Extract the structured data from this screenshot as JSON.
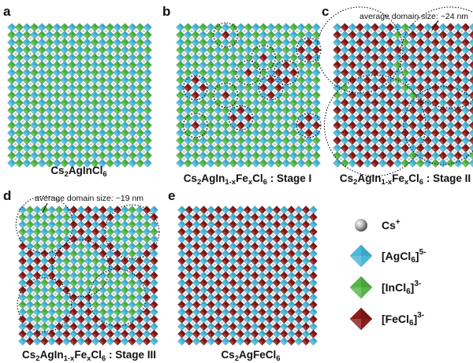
{
  "panels": [
    {
      "letter": "a",
      "caption": "Cs2AgInCl6",
      "stage": "",
      "pattern": "pure-in",
      "domains": []
    },
    {
      "letter": "b",
      "caption": "Cs2AgIn1-xFexCl6",
      "stage": "Stage I",
      "pattern": "small-domains",
      "domains": [
        [
          1,
          6
        ],
        [
          6,
          14
        ],
        [
          3,
          17
        ],
        [
          4,
          11
        ],
        [
          6,
          9
        ],
        [
          8,
          12
        ],
        [
          9,
          6
        ],
        [
          8,
          2
        ],
        [
          13,
          2
        ],
        [
          13,
          17
        ],
        [
          12,
          8
        ]
      ]
    },
    {
      "letter": "c",
      "caption": "Cs2AgIn1-xFexCl6",
      "stage": "Stage II",
      "pattern": "large-domains",
      "domains": [
        [
          3,
          3,
          5
        ],
        [
          4,
          15,
          6
        ],
        [
          13,
          5,
          6
        ],
        [
          13,
          14,
          4.5
        ]
      ],
      "annotation": "average domain size:  ~24 nm"
    },
    {
      "letter": "d",
      "caption": "Cs2AgIn1-xFexCl6",
      "stage": "Stage III",
      "pattern": "in-domains",
      "domains": [
        [
          2,
          3,
          3.2
        ],
        [
          3,
          15,
          3
        ],
        [
          8,
          8,
          3.2
        ],
        [
          13,
          3,
          3
        ],
        [
          12,
          13,
          3.2
        ]
      ],
      "annotation": "average domain size:  ~19 nm"
    },
    {
      "letter": "e",
      "caption": "Cs2AgFeCl6",
      "stage": "",
      "pattern": "pure-fe",
      "domains": []
    }
  ],
  "legend": [
    {
      "label": "Cs",
      "sup": "+",
      "type": "sphere"
    },
    {
      "label": "[AgCl6]",
      "sup": "5-",
      "type": "ag-octahedron"
    },
    {
      "label": "[InCl6]",
      "sup": "3-",
      "type": "in-octahedron"
    },
    {
      "label": "[FeCl6]",
      "sup": "3-",
      "type": "fe-octahedron"
    }
  ],
  "colors": {
    "ag": "#4ab8d8",
    "ag_dark": "#2e8fb0",
    "in": "#55b648",
    "in_dark": "#3b8c31",
    "fe": "#8b1a1a",
    "fe_dark": "#5e0f0f",
    "cs": "#c9c9c9"
  }
}
